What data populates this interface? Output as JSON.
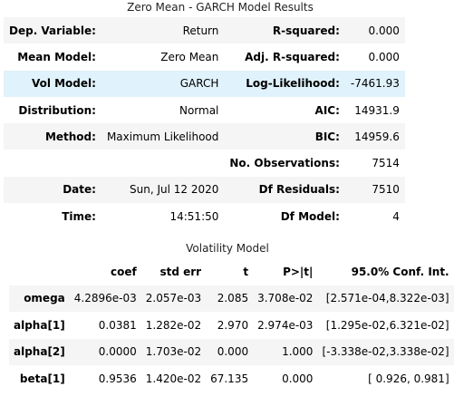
{
  "summary": {
    "title": "Zero Mean - GARCH Model Results",
    "rows": [
      {
        "k1": "Dep. Variable:",
        "v1": "Return",
        "k2": "R-squared:",
        "v2": "0.000"
      },
      {
        "k1": "Mean Model:",
        "v1": "Zero Mean",
        "k2": "Adj. R-squared:",
        "v2": "0.000"
      },
      {
        "k1": "Vol Model:",
        "v1": "GARCH",
        "k2": "Log-Likelihood:",
        "v2": "-7461.93"
      },
      {
        "k1": "Distribution:",
        "v1": "Normal",
        "k2": "AIC:",
        "v2": "14931.9"
      },
      {
        "k1": "Method:",
        "v1": "Maximum Likelihood",
        "k2": "BIC:",
        "v2": "14959.6"
      },
      {
        "k1": "",
        "v1": "",
        "k2": "No. Observations:",
        "v2": "7514"
      },
      {
        "k1": "Date:",
        "v1": "Sun, Jul 12 2020",
        "k2": "Df Residuals:",
        "v2": "7510"
      },
      {
        "k1": "Time:",
        "v1": "14:51:50",
        "k2": "Df Model:",
        "v2": "4"
      }
    ]
  },
  "volatility": {
    "title": "Volatility Model",
    "headers": [
      "",
      "coef",
      "std err",
      "t",
      "P>|t|",
      "95.0% Conf. Int."
    ],
    "rows": [
      {
        "name": "omega",
        "coef": "4.2896e-03",
        "stderr": "2.057e-03",
        "t": "2.085",
        "p": "3.708e-02",
        "ci": "[2.571e-04,8.322e-03]"
      },
      {
        "name": "alpha[1]",
        "coef": "0.0381",
        "stderr": "1.282e-02",
        "t": "2.970",
        "p": "2.974e-03",
        "ci": "[1.295e-02,6.321e-02]"
      },
      {
        "name": "alpha[2]",
        "coef": "0.0000",
        "stderr": "1.703e-02",
        "t": "0.000",
        "p": "1.000",
        "ci": "[-3.338e-02,3.338e-02]"
      },
      {
        "name": "beta[1]",
        "coef": "0.9536",
        "stderr": "1.420e-02",
        "t": "67.135",
        "p": "0.000",
        "ci": "[ 0.926, 0.981]"
      }
    ]
  },
  "colors": {
    "row_stripe": "#f5f5f5",
    "row_highlight": "#e0f2fb"
  }
}
